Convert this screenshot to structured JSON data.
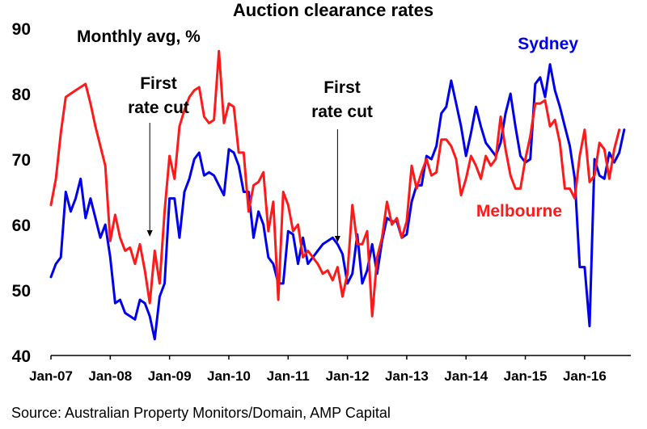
{
  "chart_data": {
    "type": "line",
    "title": "Auction clearance rates",
    "subtitle": "Monthly avg, %",
    "source": "Source: Australian Property Monitors/Domain, AMP Capital",
    "ylim": [
      40,
      90
    ],
    "yticks": [
      40,
      50,
      60,
      70,
      80,
      90
    ],
    "x_tick_labels": [
      "Jan-07",
      "Jan-08",
      "Jan-09",
      "Jan-10",
      "Jan-11",
      "Jan-12",
      "Jan-13",
      "Jan-14",
      "Jan-15",
      "Jan-16"
    ],
    "x_start": "Jan-07",
    "annotations": [
      {
        "lines": [
          "First",
          "rate cut"
        ],
        "at": "Sep-08"
      },
      {
        "lines": [
          "First",
          "rate cut"
        ],
        "at": "Nov-11"
      }
    ],
    "series": [
      {
        "name": "Sydney",
        "color": "#0000ee",
        "values": [
          52,
          54,
          55,
          65,
          62,
          64,
          67,
          61,
          64,
          61,
          58,
          60,
          55,
          48,
          48.5,
          46.5,
          46,
          45.5,
          48.5,
          48,
          46,
          42.5,
          49,
          51,
          64,
          64,
          58,
          65,
          67,
          70,
          71,
          67.5,
          68,
          67.5,
          66,
          64.5,
          71.5,
          71,
          69,
          65,
          65,
          58,
          62,
          60,
          55,
          54,
          51,
          51,
          59,
          58.5,
          54,
          58,
          54,
          55,
          56,
          57,
          57.5,
          58,
          57,
          55.5,
          51,
          52.5,
          58.5,
          51,
          53,
          57,
          52.5,
          57.5,
          61,
          60.5,
          60.5,
          58,
          58.5,
          63.5,
          66,
          66,
          70.5,
          70,
          72,
          77,
          78,
          82,
          78.5,
          75,
          70.5,
          74,
          78,
          75,
          72.5,
          71.5,
          70.5,
          72.5,
          77,
          80,
          75,
          70.5,
          69.5,
          70,
          81.5,
          82.5,
          79.5,
          84.5,
          80.5,
          78,
          75,
          72,
          67,
          53.5,
          53.5,
          44.5,
          70,
          67.5,
          67,
          71,
          69.5,
          71,
          74.5
        ]
      },
      {
        "name": "Melbourne",
        "color": "#ff1a1a",
        "values": [
          63,
          67,
          74,
          79.5,
          80,
          80.5,
          81,
          81.5,
          78.5,
          75,
          72,
          69,
          57.5,
          61.5,
          58,
          56,
          56.5,
          54,
          57,
          53,
          48,
          56,
          51,
          62,
          70.5,
          67,
          75,
          77.5,
          79.5,
          80.5,
          81,
          76.5,
          75.5,
          76,
          86.5,
          75.5,
          78.5,
          78,
          71,
          71,
          62,
          66,
          66.5,
          68,
          59,
          63.5,
          48.5,
          65,
          63,
          59,
          60,
          55,
          56,
          55,
          54,
          52.5,
          53,
          51.5,
          53.5,
          49,
          52.5,
          63,
          57,
          57,
          59,
          46,
          55,
          58,
          63.5,
          60,
          61,
          58,
          60.5,
          69,
          65.5,
          68,
          70,
          67.5,
          68,
          73,
          73,
          72,
          70,
          64.5,
          67,
          70.5,
          69,
          67,
          70.5,
          69,
          70,
          76.5,
          71.5,
          67.5,
          65.5,
          65.5,
          70,
          73.5,
          78.5,
          78.5,
          79,
          75,
          76,
          72.5,
          65.5,
          65.5,
          64,
          70.5,
          74.5,
          66.5,
          67.5,
          72.5,
          71.5,
          67,
          71.5,
          74.5
        ]
      }
    ]
  }
}
